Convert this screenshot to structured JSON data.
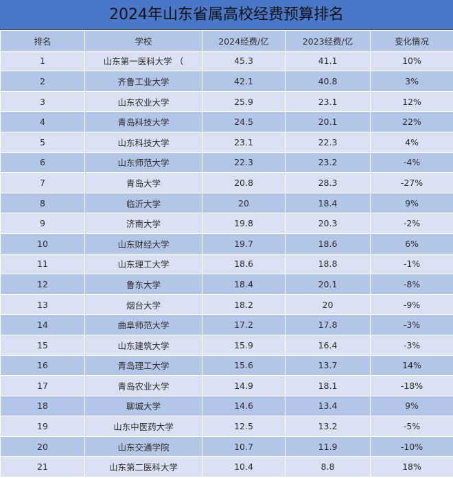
{
  "title": "2024年山东省属高校经费预算排名",
  "headers": [
    "排名",
    "学校",
    "2024经费/亿",
    "2023经费/亿",
    "变化情况"
  ],
  "rows": [
    [
      "1",
      "山东第一医科大学  （",
      "45.3",
      "41.1",
      "10%"
    ],
    [
      "2",
      "齐鲁工业大学",
      "42.1",
      "40.8",
      "3%"
    ],
    [
      "3",
      "山东农业大学",
      "25.9",
      "23.1",
      "12%"
    ],
    [
      "4",
      "青岛科技大学",
      "24.5",
      "20.1",
      "22%"
    ],
    [
      "5",
      "山东科技大学",
      "23.1",
      "22.3",
      "4%"
    ],
    [
      "6",
      "山东师范大学",
      "22.3",
      "23.2",
      "-4%"
    ],
    [
      "7",
      "青岛大学",
      "20.8",
      "28.3",
      "-27%"
    ],
    [
      "8",
      "临沂大学",
      "20",
      "18.4",
      "9%"
    ],
    [
      "9",
      "济南大学",
      "19.8",
      "20.3",
      "-2%"
    ],
    [
      "10",
      "山东财经大学",
      "19.7",
      "18.6",
      "6%"
    ],
    [
      "11",
      "山东理工大学",
      "18.6",
      "18.8",
      "-1%"
    ],
    [
      "12",
      "鲁东大学",
      "18.4",
      "20.1",
      "-8%"
    ],
    [
      "13",
      "烟台大学",
      "18.2",
      "20",
      "-9%"
    ],
    [
      "14",
      "曲阜师范大学",
      "17.2",
      "17.8",
      "-3%"
    ],
    [
      "15",
      "山东建筑大学",
      "15.9",
      "16.4",
      "-3%"
    ],
    [
      "16",
      "青岛理工大学",
      "15.6",
      "13.7",
      "14%"
    ],
    [
      "17",
      "青岛农业大学",
      "14.9",
      "18.1",
      "-18%"
    ],
    [
      "18",
      "聊城大学",
      "14.6",
      "13.4",
      "9%"
    ],
    [
      "19",
      "山东中医药大学",
      "12.5",
      "13.2",
      "-5%"
    ],
    [
      "20",
      "山东交通学院",
      "10.7",
      "11.9",
      "-10%"
    ],
    [
      "21",
      "山东第二医科大学",
      "10.4",
      "8.8",
      "18%"
    ]
  ]
}
